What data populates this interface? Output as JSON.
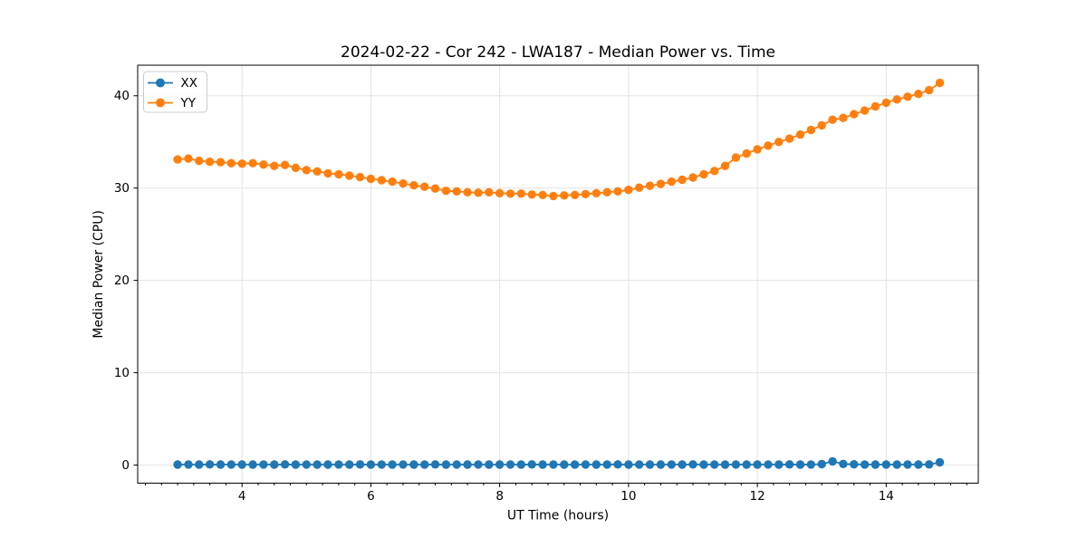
{
  "figure": {
    "title": "2024-02-22 - Cor 242 - LWA187 - Median Power vs. Time"
  },
  "chart_data": {
    "type": "line",
    "title": "2024-02-22 - Cor 242 - LWA187 - Median Power vs. Time",
    "xlabel": "UT Time (hours)",
    "ylabel": "Median Power (CPU)",
    "xlim": [
      2.38,
      15.43
    ],
    "ylim": [
      -1.96,
      43.31
    ],
    "x_ticks": [
      4,
      6,
      8,
      10,
      12,
      14
    ],
    "y_ticks": [
      0,
      10,
      20,
      30,
      40
    ],
    "x_minor_tick_step": 0.25,
    "grid": true,
    "legend_position": "upper-left",
    "marker": "circle",
    "x": [
      3.0,
      3.167,
      3.333,
      3.5,
      3.667,
      3.833,
      4.0,
      4.167,
      4.333,
      4.5,
      4.667,
      4.833,
      5.0,
      5.167,
      5.333,
      5.5,
      5.667,
      5.833,
      6.0,
      6.167,
      6.333,
      6.5,
      6.667,
      6.833,
      7.0,
      7.167,
      7.333,
      7.5,
      7.667,
      7.833,
      8.0,
      8.167,
      8.333,
      8.5,
      8.667,
      8.833,
      9.0,
      9.167,
      9.333,
      9.5,
      9.667,
      9.833,
      10.0,
      10.167,
      10.333,
      10.5,
      10.667,
      10.833,
      11.0,
      11.167,
      11.333,
      11.5,
      11.667,
      11.833,
      12.0,
      12.167,
      12.333,
      12.5,
      12.667,
      12.833,
      13.0,
      13.167,
      13.333,
      13.5,
      13.667,
      13.833,
      14.0,
      14.167,
      14.333,
      14.5,
      14.667,
      14.833
    ],
    "series": [
      {
        "name": "XX",
        "color": "#1f77b4",
        "values": [
          0.05,
          0.06,
          0.05,
          0.07,
          0.05,
          0.06,
          0.05,
          0.05,
          0.06,
          0.05,
          0.07,
          0.05,
          0.06,
          0.05,
          0.05,
          0.06,
          0.05,
          0.07,
          0.05,
          0.06,
          0.05,
          0.06,
          0.05,
          0.05,
          0.07,
          0.05,
          0.06,
          0.05,
          0.06,
          0.05,
          0.05,
          0.06,
          0.05,
          0.07,
          0.05,
          0.06,
          0.05,
          0.05,
          0.06,
          0.05,
          0.06,
          0.07,
          0.05,
          0.06,
          0.05,
          0.05,
          0.06,
          0.05,
          0.07,
          0.05,
          0.06,
          0.05,
          0.06,
          0.05,
          0.05,
          0.06,
          0.05,
          0.07,
          0.05,
          0.06,
          0.1,
          0.4,
          0.12,
          0.08,
          0.06,
          0.05,
          0.06,
          0.05,
          0.06,
          0.05,
          0.07,
          0.3
        ]
      },
      {
        "name": "YY",
        "color": "#ff7f0e",
        "values": [
          33.1,
          33.2,
          32.95,
          32.85,
          32.8,
          32.7,
          32.65,
          32.7,
          32.55,
          32.4,
          32.5,
          32.2,
          31.95,
          31.8,
          31.6,
          31.5,
          31.35,
          31.2,
          31.0,
          30.85,
          30.7,
          30.5,
          30.3,
          30.15,
          29.95,
          29.7,
          29.65,
          29.55,
          29.5,
          29.55,
          29.45,
          29.4,
          29.4,
          29.3,
          29.25,
          29.15,
          29.2,
          29.25,
          29.35,
          29.45,
          29.55,
          29.65,
          29.8,
          30.05,
          30.25,
          30.45,
          30.7,
          30.9,
          31.15,
          31.5,
          31.85,
          32.4,
          33.3,
          33.75,
          34.2,
          34.6,
          35.0,
          35.35,
          35.8,
          36.3,
          36.8,
          37.4,
          37.6,
          38.0,
          38.4,
          38.85,
          39.25,
          39.6,
          39.9,
          40.2,
          40.6,
          41.4
        ]
      }
    ]
  }
}
